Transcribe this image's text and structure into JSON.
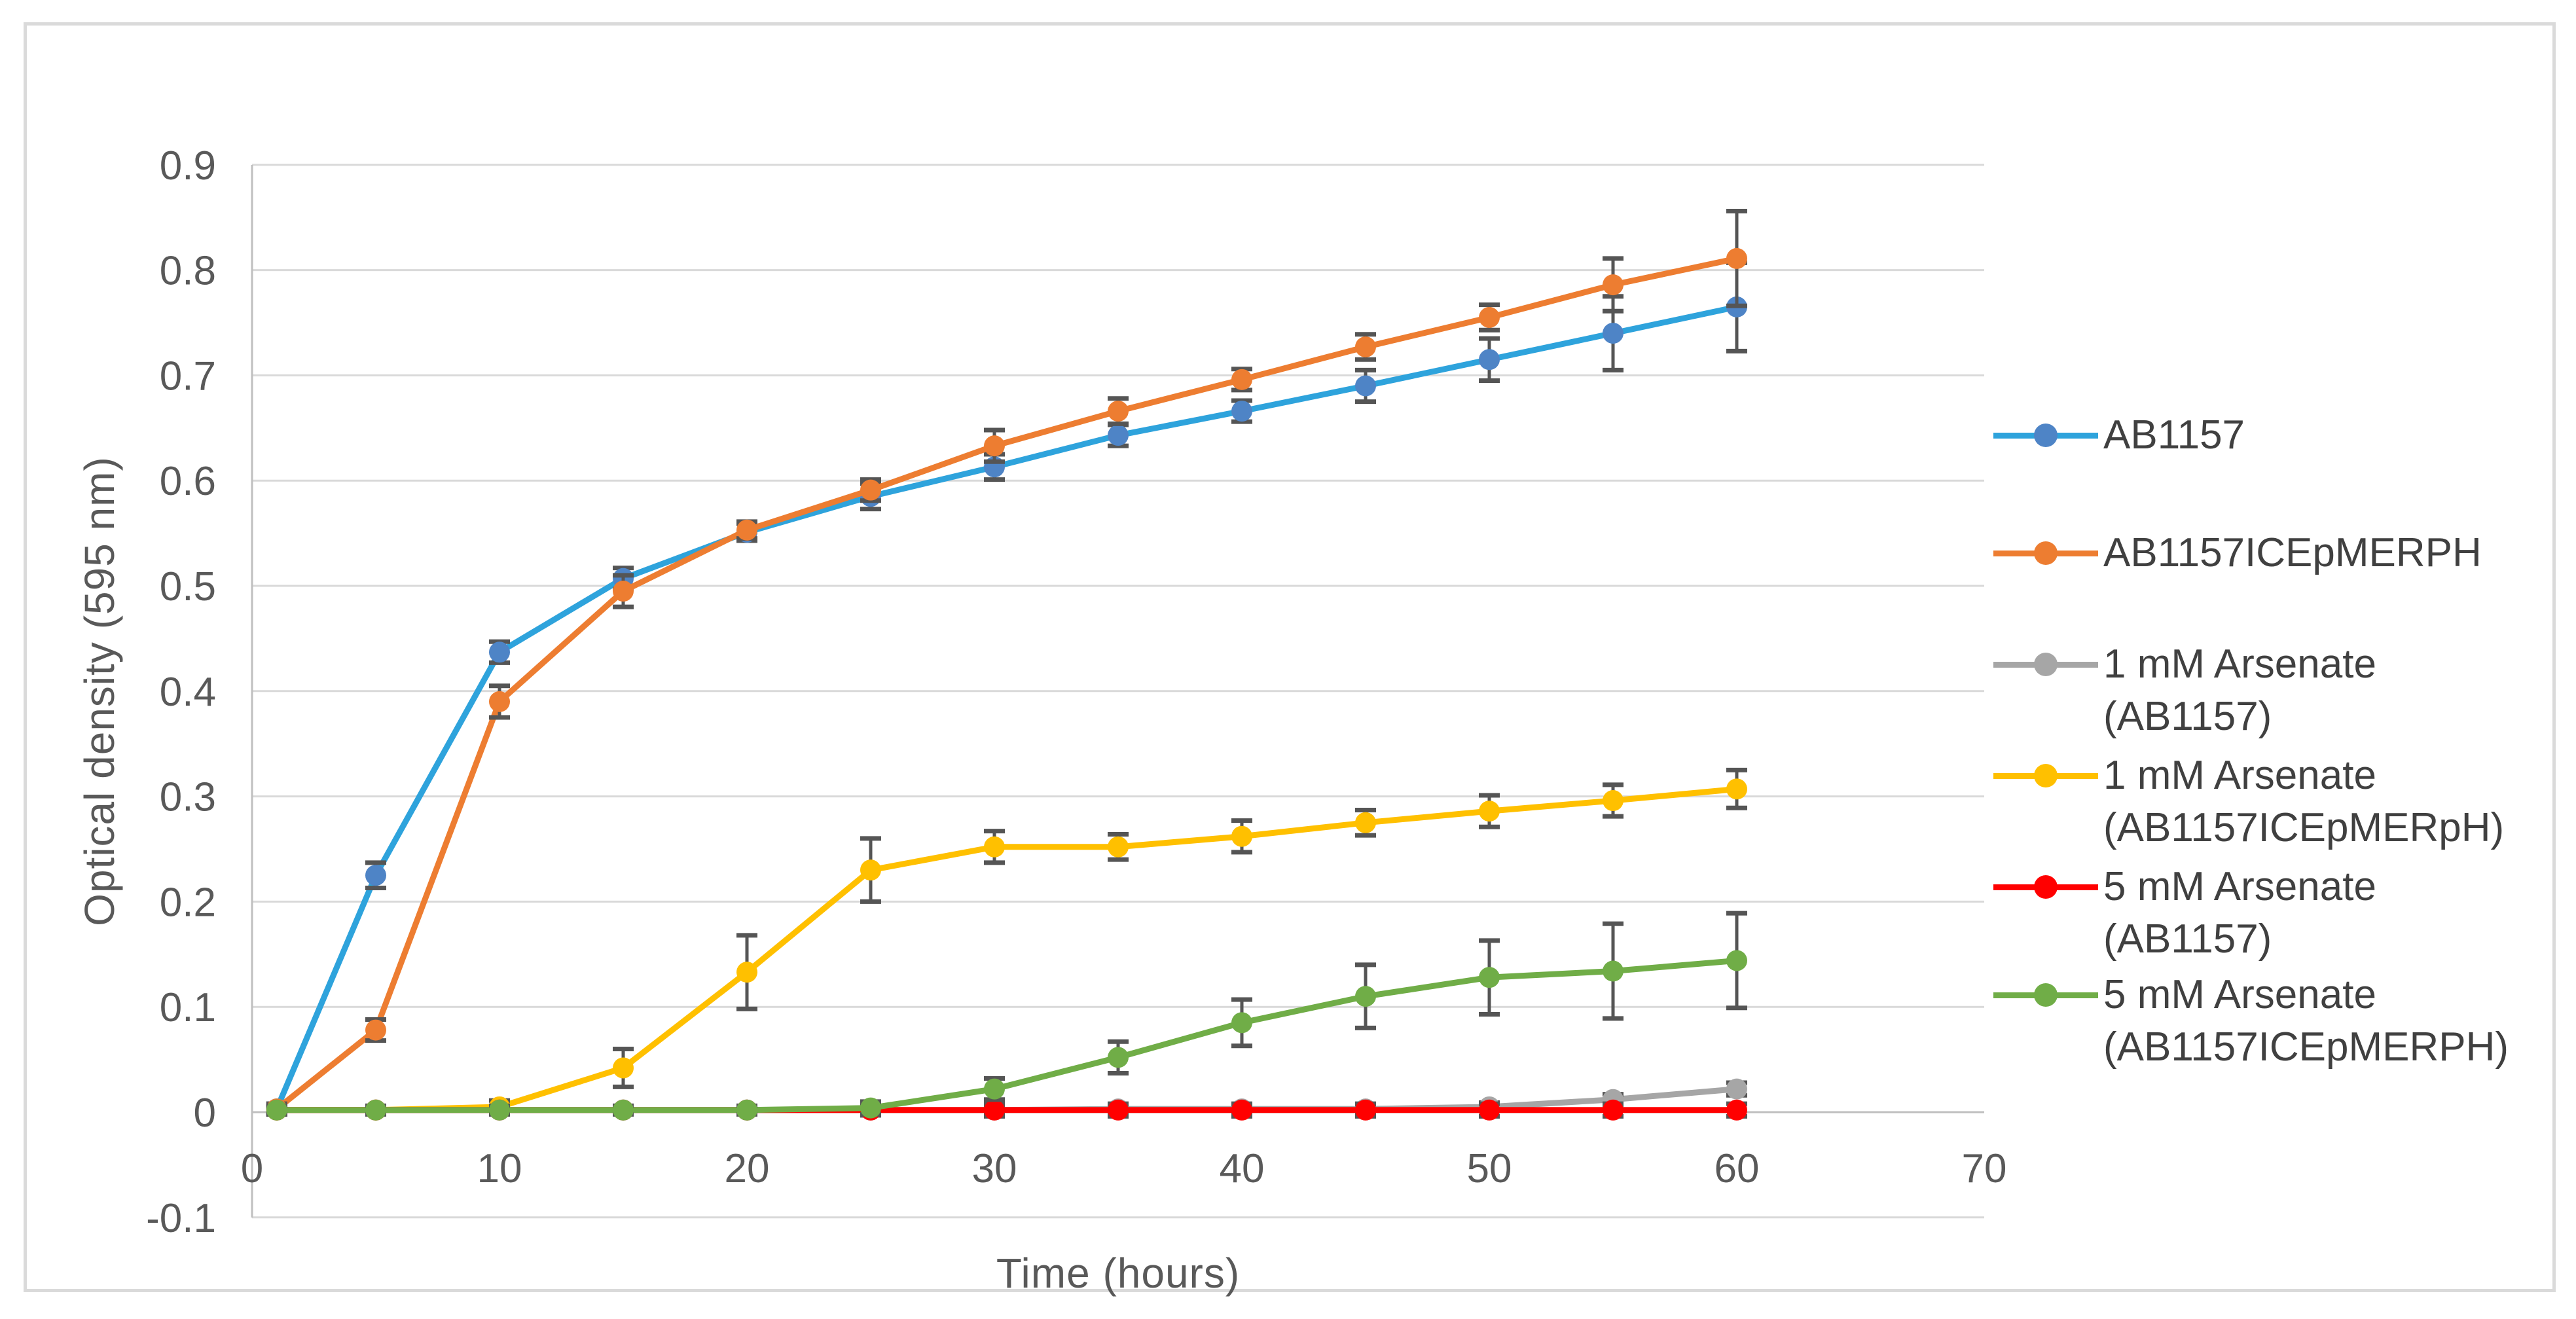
{
  "chart_data": {
    "type": "line",
    "title": "",
    "xlabel": "Time (hours)",
    "ylabel": "Optical density (595 nm)",
    "xlim": [
      0,
      70
    ],
    "ylim": [
      -0.1,
      0.9
    ],
    "grid": true,
    "legend_position": "right",
    "x_ticks": [
      0,
      10,
      20,
      30,
      40,
      50,
      60,
      70
    ],
    "y_ticks": [
      {
        "label": "0.9",
        "value": 0.9
      },
      {
        "label": "0.8",
        "value": 0.8
      },
      {
        "label": "0.7",
        "value": 0.7
      },
      {
        "label": "0.6",
        "value": 0.6
      },
      {
        "label": "0.5",
        "value": 0.5
      },
      {
        "label": "0.4",
        "value": 0.4
      },
      {
        "label": "0.3",
        "value": 0.3
      },
      {
        "label": "0.2",
        "value": 0.2
      },
      {
        "label": "0.1",
        "value": 0.1
      },
      {
        "label": "0",
        "value": 0
      },
      {
        "label": "-0.1",
        "value": -0.1
      }
    ],
    "x": [
      1,
      5,
      10,
      15,
      20,
      25,
      30,
      35,
      40,
      45,
      50,
      55,
      60
    ],
    "series": [
      {
        "name": "AB1157",
        "line_color": "#2EA3DC",
        "marker_color": "#4E84C6",
        "values": [
          0.003,
          0.225,
          0.437,
          0.507,
          0.551,
          0.585,
          0.613,
          0.643,
          0.666,
          0.69,
          0.715,
          0.74,
          0.765
        ],
        "errors": [
          0.005,
          0.012,
          0.01,
          0.01,
          0.008,
          0.012,
          0.012,
          0.01,
          0.01,
          0.015,
          0.02,
          0.035,
          0.042
        ]
      },
      {
        "name": "AB1157ICEpMERPH",
        "line_color": "#ED7D31",
        "marker_color": "#ED7D31",
        "values": [
          0.003,
          0.078,
          0.39,
          0.495,
          0.553,
          0.591,
          0.633,
          0.666,
          0.696,
          0.727,
          0.755,
          0.786,
          0.811
        ],
        "errors": [
          0.005,
          0.01,
          0.015,
          0.015,
          0.008,
          0.01,
          0.015,
          0.012,
          0.01,
          0.012,
          0.012,
          0.025,
          0.045
        ]
      },
      {
        "name": "1 mM Arsenate (AB1157)",
        "line_color": "#A6A6A6",
        "marker_color": "#A6A6A6",
        "values": [
          0.002,
          0.002,
          0.002,
          0.002,
          0.002,
          0.002,
          0.002,
          0.003,
          0.003,
          0.003,
          0.005,
          0.012,
          0.022
        ],
        "errors": [
          0.003,
          0.003,
          0.003,
          0.003,
          0.003,
          0.003,
          0.004,
          0.004,
          0.004,
          0.004,
          0.004,
          0.005,
          0.006
        ]
      },
      {
        "name": "1 mM Arsenate (AB1157ICEpMERpH)",
        "line_color": "#FFC000",
        "marker_color": "#FFC000",
        "values": [
          0.002,
          0.002,
          0.005,
          0.042,
          0.133,
          0.23,
          0.252,
          0.252,
          0.262,
          0.275,
          0.286,
          0.296,
          0.307
        ],
        "errors": [
          0.003,
          0.003,
          0.006,
          0.018,
          0.035,
          0.03,
          0.015,
          0.012,
          0.015,
          0.012,
          0.015,
          0.015,
          0.018
        ]
      },
      {
        "name": "5 mM Arsenate (AB1157)",
        "line_color": "#FF0000",
        "marker_color": "#FF0000",
        "values": [
          0.002,
          0.002,
          0.002,
          0.002,
          0.002,
          0.002,
          0.002,
          0.002,
          0.002,
          0.002,
          0.002,
          0.002,
          0.002
        ],
        "errors": [
          0.004,
          0.004,
          0.004,
          0.004,
          0.004,
          0.005,
          0.006,
          0.006,
          0.006,
          0.006,
          0.006,
          0.006,
          0.006
        ]
      },
      {
        "name": "5 mM Arsenate (AB1157ICEpMERPH)",
        "line_color": "#70AD47",
        "marker_color": "#70AD47",
        "values": [
          0.002,
          0.002,
          0.002,
          0.002,
          0.002,
          0.004,
          0.022,
          0.052,
          0.085,
          0.11,
          0.128,
          0.134,
          0.144
        ],
        "errors": [
          0.004,
          0.004,
          0.004,
          0.004,
          0.004,
          0.006,
          0.01,
          0.015,
          0.022,
          0.03,
          0.035,
          0.045,
          0.045
        ]
      }
    ]
  },
  "legend": {
    "entries": [
      {
        "line1": "AB1157",
        "line2": ""
      },
      {
        "line1": "AB1157ICEpMERPH",
        "line2": ""
      },
      {
        "line1": "1 mM Arsenate",
        "line2": "(AB1157)"
      },
      {
        "line1": "1 mM Arsenate",
        "line2": "(AB1157ICEpMERpH)"
      },
      {
        "line1": "5 mM Arsenate",
        "line2": "(AB1157)"
      },
      {
        "line1": "5 mM Arsenate",
        "line2": "(AB1157ICEpMERPH)"
      }
    ]
  },
  "style": {
    "background_color": "#FFFFFF",
    "border_color": "#DADADA",
    "gridline_color": "#D9D9D9",
    "axis_color": "#BFBFBF",
    "error_bar_color": "#555555",
    "tick_text_color": "#595959",
    "axis_title_color": "#595959",
    "legend_text_color": "#404040"
  }
}
